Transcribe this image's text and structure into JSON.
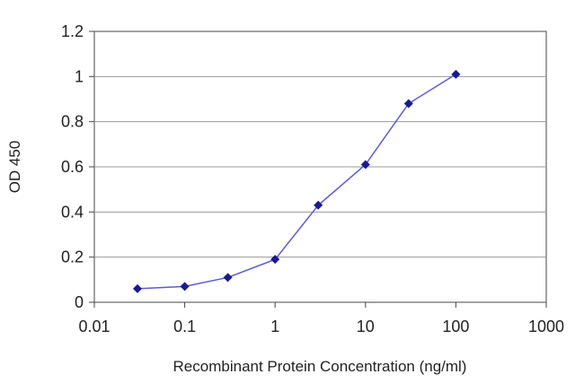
{
  "chart_data": {
    "type": "line",
    "title": "",
    "xlabel": "Recombinant Protein Concentration (ng/ml)",
    "ylabel": "OD 450",
    "x_scale": "log",
    "xlim": [
      0.01,
      1000
    ],
    "ylim": [
      0,
      1.2
    ],
    "x_ticks": [
      0.01,
      0.1,
      1,
      10,
      100,
      1000
    ],
    "x_tick_labels": [
      "0.01",
      "0.1",
      "1",
      "10",
      "100",
      "1000"
    ],
    "y_ticks": [
      0,
      0.2,
      0.4,
      0.6,
      0.8,
      1,
      1.2
    ],
    "y_tick_labels": [
      "0",
      "0.2",
      "0.4",
      "0.6",
      "0.8",
      "1",
      "1.2"
    ],
    "grid": "horizontal",
    "legend": "none",
    "series": [
      {
        "x": [
          0.03,
          0.1,
          0.3,
          1,
          3,
          10,
          30,
          100
        ],
        "y": [
          0.06,
          0.07,
          0.11,
          0.19,
          0.43,
          0.61,
          0.88,
          1.01
        ]
      }
    ],
    "colors": {
      "line": "#5b5bd6",
      "marker": "#1a1a8c",
      "grid": "#999999",
      "axis": "#444444"
    }
  }
}
